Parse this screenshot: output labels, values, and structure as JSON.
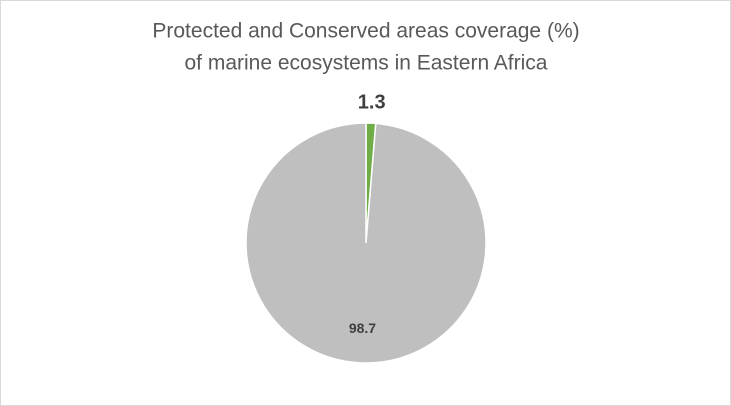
{
  "chart_data": {
    "type": "pie",
    "title": [
      "Protected and Conserved areas coverage (%)",
      "of marine ecosystems in Eastern Africa"
    ],
    "values": [
      1.3,
      98.7
    ],
    "colors": [
      "#70ad47",
      "#bfbfbf"
    ]
  }
}
